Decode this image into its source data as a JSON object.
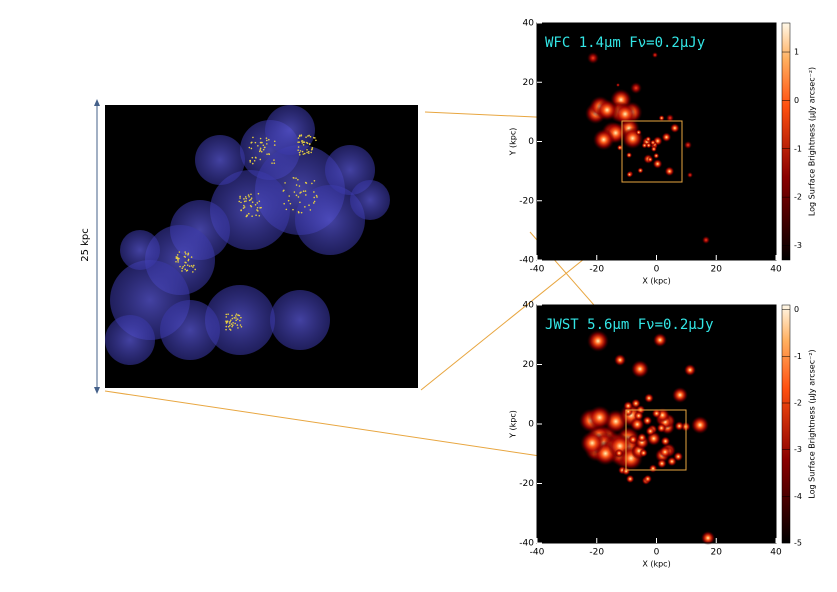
{
  "scale_label": "25 kpc",
  "chart_data": [
    {
      "type": "image",
      "title": "WFC 1.4μm Fν=0.2μJy",
      "x_label": "X (kpc)",
      "y_label": "Y (kpc)",
      "xlim": [
        -40,
        40
      ],
      "ylim": [
        -40,
        40
      ],
      "xticks": [
        -40,
        -20,
        0,
        20,
        40
      ],
      "yticks": [
        -40,
        -20,
        0,
        20,
        40
      ],
      "colorbar_label": "Log Surface Brightness (μJy arcsec⁻²)",
      "clim": [
        -3.3,
        1.6
      ],
      "cticks": [
        -3,
        -2,
        -1,
        0,
        1
      ]
    },
    {
      "type": "image",
      "title": "JWST 5.6μm Fν=0.2μJy",
      "x_label": "X (kpc)",
      "y_label": "Y (kpc)",
      "xlim": [
        -40,
        40
      ],
      "ylim": [
        -40,
        40
      ],
      "xticks": [
        -40,
        -20,
        0,
        20,
        40
      ],
      "yticks": [
        -40,
        -20,
        0,
        20,
        40
      ],
      "colorbar_label": "Log Surface Brightness (μJy arcsec⁻²)",
      "clim": [
        -5,
        0.1
      ],
      "cticks": [
        -5,
        -4,
        -3,
        -2,
        -1,
        0
      ]
    }
  ]
}
